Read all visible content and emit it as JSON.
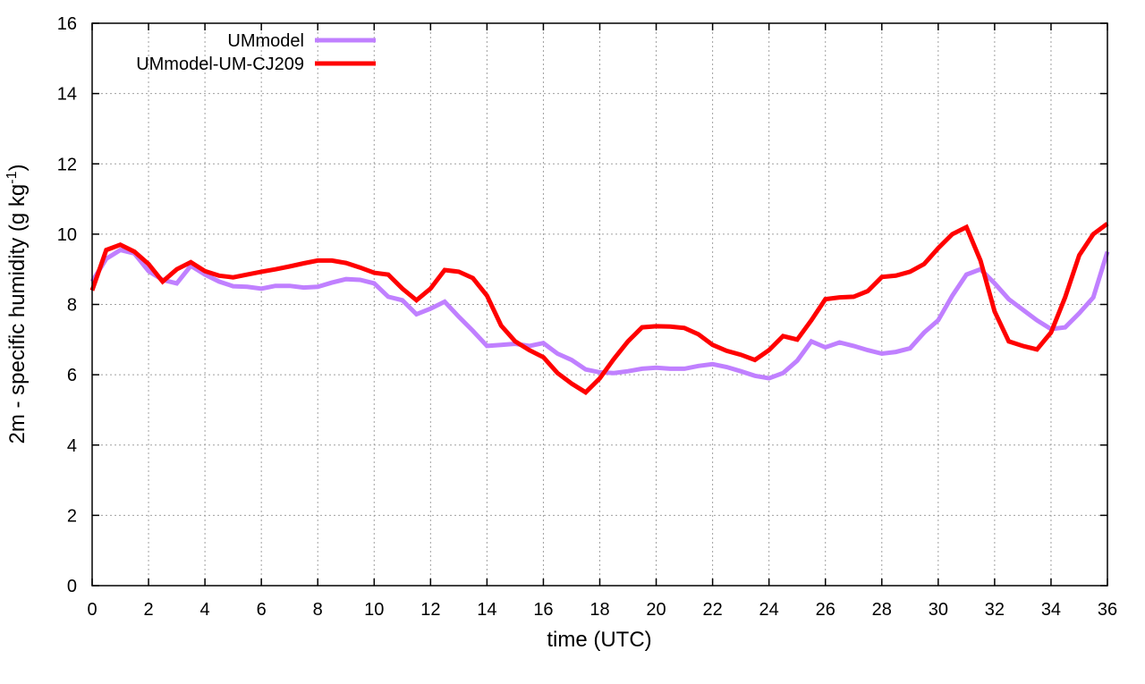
{
  "chart_data": {
    "type": "line",
    "title": "",
    "xlabel": "time (UTC)",
    "ylabel_main": "2m - specific humidity (g kg",
    "ylabel_sup": "-1",
    "ylabel_close": ")",
    "xlim": [
      0,
      36
    ],
    "ylim": [
      0,
      16
    ],
    "xticks": [
      0,
      2,
      4,
      6,
      8,
      10,
      12,
      14,
      16,
      18,
      20,
      22,
      24,
      26,
      28,
      30,
      32,
      34,
      36
    ],
    "yticks": [
      0,
      2,
      4,
      6,
      8,
      10,
      12,
      14,
      16
    ],
    "grid": true,
    "legend_position": "top-left",
    "x": [
      0,
      0.5,
      1,
      1.5,
      2,
      2.5,
      3,
      3.5,
      4,
      4.5,
      5,
      5.5,
      6,
      6.5,
      7,
      7.5,
      8,
      8.5,
      9,
      9.5,
      10,
      10.5,
      11,
      11.5,
      12,
      12.5,
      13,
      13.5,
      14,
      14.5,
      15,
      15.5,
      16,
      16.5,
      17,
      17.5,
      18,
      18.5,
      19,
      19.5,
      20,
      20.5,
      21,
      21.5,
      22,
      22.5,
      23,
      23.5,
      24,
      24.5,
      25,
      25.5,
      26,
      26.5,
      27,
      27.5,
      28,
      28.5,
      29,
      29.5,
      30,
      30.5,
      31,
      31.5,
      32,
      32.5,
      33,
      33.5,
      34,
      34.5,
      35,
      35.5,
      36
    ],
    "series": [
      {
        "name": "UMmodel",
        "color": "#c080ff",
        "values": [
          8.65,
          9.3,
          9.55,
          9.45,
          8.95,
          8.7,
          8.6,
          9.1,
          8.85,
          8.65,
          8.52,
          8.5,
          8.45,
          8.53,
          8.53,
          8.48,
          8.5,
          8.62,
          8.72,
          8.7,
          8.6,
          8.22,
          8.12,
          7.72,
          7.88,
          8.08,
          7.65,
          7.25,
          6.82,
          6.85,
          6.88,
          6.82,
          6.9,
          6.6,
          6.42,
          6.15,
          6.07,
          6.05,
          6.1,
          6.17,
          6.2,
          6.17,
          6.17,
          6.25,
          6.3,
          6.22,
          6.1,
          5.97,
          5.9,
          6.05,
          6.4,
          6.95,
          6.78,
          6.92,
          6.82,
          6.7,
          6.6,
          6.65,
          6.75,
          7.2,
          7.55,
          8.25,
          8.85,
          9.0,
          8.6,
          8.15,
          7.85,
          7.55,
          7.3,
          7.35,
          7.75,
          8.2,
          9.5
        ]
      },
      {
        "name": "UMmodel-UM-CJ209",
        "color": "#ff0000",
        "values": [
          8.4,
          9.55,
          9.7,
          9.5,
          9.15,
          8.65,
          9.0,
          9.2,
          8.95,
          8.82,
          8.77,
          8.85,
          8.93,
          9.0,
          9.08,
          9.17,
          9.25,
          9.25,
          9.18,
          9.05,
          8.9,
          8.85,
          8.45,
          8.12,
          8.45,
          8.98,
          8.93,
          8.75,
          8.25,
          7.4,
          6.95,
          6.7,
          6.5,
          6.05,
          5.75,
          5.5,
          5.9,
          6.45,
          6.95,
          7.35,
          7.38,
          7.37,
          7.33,
          7.15,
          6.85,
          6.68,
          6.57,
          6.42,
          6.7,
          7.1,
          7.0,
          7.55,
          8.15,
          8.2,
          8.22,
          8.38,
          8.78,
          8.82,
          8.93,
          9.15,
          9.6,
          10.0,
          10.2,
          9.25,
          7.8,
          6.95,
          6.82,
          6.72,
          7.2,
          8.2,
          9.4,
          10.0,
          10.3
        ]
      }
    ]
  }
}
